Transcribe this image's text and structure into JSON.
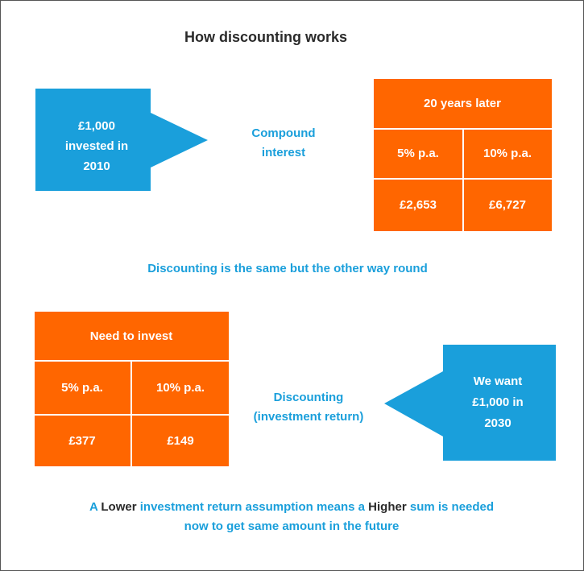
{
  "title": "How discounting works",
  "top": {
    "source": [
      "£1,000",
      "invested in",
      "2010"
    ],
    "arrow_label": [
      "Compound",
      "interest"
    ],
    "table": {
      "header": "20 years later",
      "rates": [
        "5% p.a.",
        "10% p.a."
      ],
      "amounts": [
        "£2,653",
        "£6,727"
      ]
    }
  },
  "middle_text": "Discounting is the same but the other way round",
  "bottom": {
    "table": {
      "header": "Need to invest",
      "rates": [
        "5% p.a.",
        "10% p.a."
      ],
      "amounts": [
        "£377",
        "£149"
      ]
    },
    "arrow_label": [
      "Discounting",
      "(investment return)"
    ],
    "target": [
      "We want",
      "£1,000 in",
      "2030"
    ]
  },
  "conclusion": {
    "line1": [
      "A",
      "Lower",
      "investment return assumption means a",
      "Higher",
      "sum is needed"
    ],
    "line2": "now to get same amount in the future"
  }
}
